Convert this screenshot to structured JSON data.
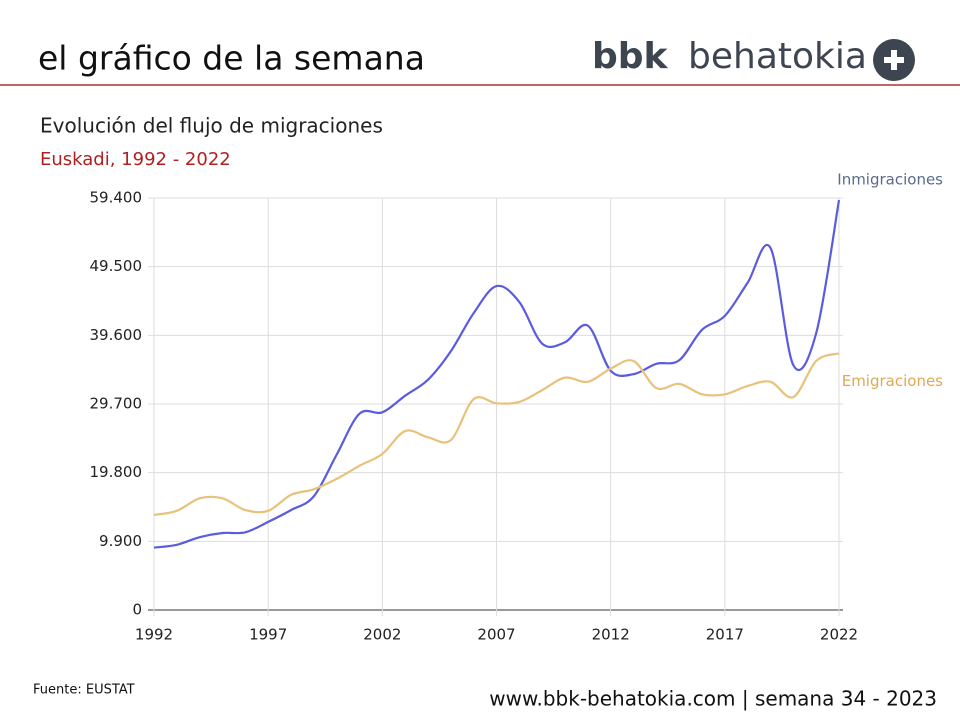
{
  "header": {
    "title": "el gráfico de la semana",
    "logo_bold": "bbk",
    "logo_light": "behatokia"
  },
  "chart_data": {
    "type": "line",
    "title": "Evolución del flujo de migraciones",
    "subtitle": "Euskadi, 1992 - 2022",
    "x": [
      1992,
      1993,
      1994,
      1995,
      1996,
      1997,
      1998,
      1999,
      2000,
      2001,
      2002,
      2003,
      2004,
      2005,
      2006,
      2007,
      2008,
      2009,
      2010,
      2011,
      2012,
      2013,
      2014,
      2015,
      2016,
      2017,
      2018,
      2019,
      2020,
      2021,
      2022
    ],
    "series": [
      {
        "name": "Inmigraciones",
        "color": "#5b5bdf",
        "values": [
          9000,
          9400,
          10500,
          11100,
          11200,
          12700,
          14400,
          16400,
          22400,
          28300,
          28500,
          30900,
          33200,
          37300,
          42800,
          46700,
          44400,
          38400,
          38600,
          41000,
          34500,
          34000,
          35500,
          36000,
          40400,
          42400,
          47200,
          52200,
          35300,
          39900,
          59100
        ]
      },
      {
        "name": "Emigraciones",
        "color": "#e8c27a",
        "values": [
          13700,
          14300,
          16100,
          16100,
          14400,
          14300,
          16600,
          17400,
          18900,
          20800,
          22500,
          25800,
          24900,
          24500,
          30400,
          29800,
          30000,
          31700,
          33500,
          32900,
          34800,
          35900,
          32000,
          32600,
          31100,
          31100,
          32300,
          32900,
          30700,
          35900,
          37000
        ]
      }
    ],
    "xlim": [
      1992,
      2022
    ],
    "xticks": [
      1992,
      1997,
      2002,
      2007,
      2012,
      2017,
      2022
    ],
    "ylim": [
      0,
      59400
    ],
    "yticks": [
      0,
      {
        "value": 9900,
        "label": "9.900"
      },
      {
        "value": 19800,
        "label": "19.800"
      },
      {
        "value": 29700,
        "label": "29.700"
      },
      {
        "value": 39600,
        "label": "39.600"
      },
      {
        "value": 49500,
        "label": "49.500"
      },
      {
        "value": 59400,
        "label": "59.400"
      }
    ],
    "grid": true
  },
  "footer": {
    "source": "Fuente: EUSTAT",
    "site": "www.bbk-behatokia.com | semana 34 - 2023"
  }
}
